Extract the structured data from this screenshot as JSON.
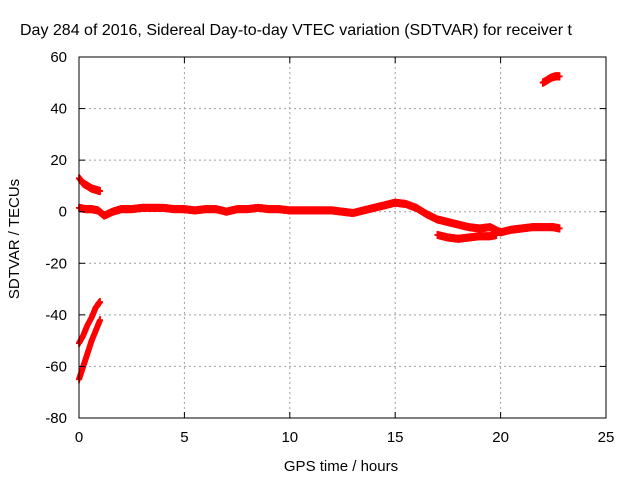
{
  "chart_data": {
    "type": "scatter",
    "title": "Day 284 of 2016, Sidereal Day-to-day VTEC variation (SDTVAR) for receiver t",
    "xlabel": "GPS time / hours",
    "ylabel": "SDTVAR / TECUs",
    "xlim": [
      0,
      25
    ],
    "ylim": [
      -80,
      60
    ],
    "xticks": [
      0,
      5,
      10,
      15,
      20,
      25
    ],
    "yticks": [
      -80,
      -60,
      -40,
      -20,
      0,
      20,
      40,
      60
    ],
    "grid": true,
    "marker_color": "#ff0000",
    "series": [
      {
        "x": [
          0.0,
          0.2,
          0.4,
          0.6,
          0.8,
          1.0
        ],
        "y": [
          13,
          11,
          10,
          9,
          8.5,
          8
        ]
      },
      {
        "x": [
          0.0,
          0.3,
          0.6,
          0.9,
          1.2,
          1.6,
          2.0,
          2.5,
          3.0,
          3.5,
          4.0,
          4.5,
          5.0,
          5.5,
          6.0,
          6.5,
          7.0,
          7.5,
          8.0,
          8.5,
          9.0,
          9.5,
          10.0,
          10.5,
          11.0,
          11.5,
          12.0,
          12.5,
          13.0,
          13.5,
          14.0,
          14.5,
          15.0,
          15.5,
          16.0,
          16.5,
          17.0,
          17.5,
          18.0,
          18.5,
          19.0,
          19.5,
          20.0,
          20.5,
          21.0,
          21.5,
          22.0,
          22.5,
          22.8
        ],
        "y": [
          1.5,
          1,
          1,
          0.5,
          -1.5,
          0,
          1,
          1,
          1.5,
          1.5,
          1.5,
          1,
          1,
          0.5,
          1,
          1,
          0,
          1,
          1,
          1.5,
          1,
          1,
          0.5,
          0.5,
          0.5,
          0.5,
          0.5,
          0,
          -0.5,
          0.5,
          1.5,
          2.5,
          3.5,
          3,
          1.5,
          -1,
          -3,
          -4,
          -5,
          -6,
          -6.5,
          -6,
          -8,
          -7,
          -6.5,
          -6,
          -6,
          -6,
          -6.5
        ]
      },
      {
        "x": [
          17.0,
          17.5,
          18.0,
          18.5,
          19.0,
          19.5,
          19.8
        ],
        "y": [
          -9,
          -10,
          -10.5,
          -10,
          -9.5,
          -9.5,
          -9
        ]
      },
      {
        "x": [
          0.0,
          0.2,
          0.4,
          0.6,
          0.8,
          1.0
        ],
        "y": [
          -51,
          -48,
          -44,
          -41,
          -37,
          -35
        ]
      },
      {
        "x": [
          0.0,
          0.2,
          0.4,
          0.6,
          0.8,
          1.0
        ],
        "y": [
          -65,
          -60,
          -55,
          -50,
          -46,
          -42
        ]
      },
      {
        "x": [
          22.0,
          22.2,
          22.4,
          22.6,
          22.8
        ],
        "y": [
          50,
          51,
          52,
          52.5,
          52.5
        ]
      }
    ]
  }
}
